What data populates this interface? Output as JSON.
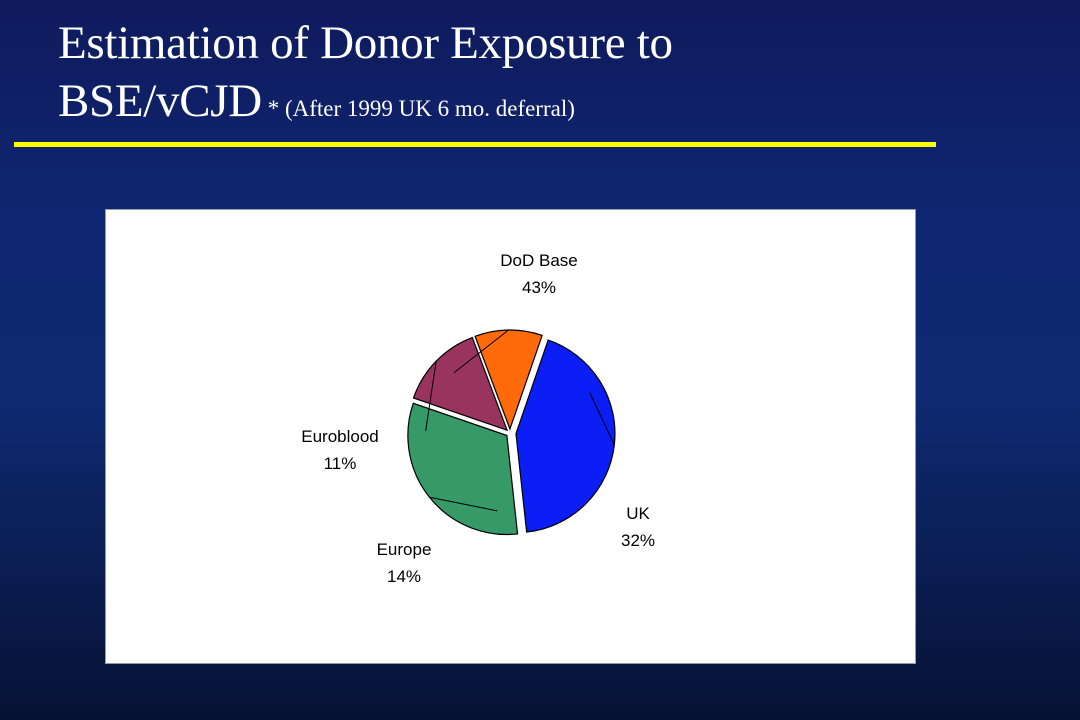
{
  "slide": {
    "title_line1": "Estimation of Donor Exposure to",
    "title_line2": "BSE/vCJD",
    "subtitle": " * (After  1999 UK 6 mo. deferral)"
  },
  "colors": {
    "background": "#0f2672",
    "rule": "#ffff00",
    "text": "#ffffff"
  },
  "chart_data": {
    "type": "pie",
    "title": "",
    "start_angle_deg": -71,
    "slices": [
      {
        "name": "DoD Base",
        "value": 43,
        "label": "43%",
        "color": "#0a1ef5"
      },
      {
        "name": "UK",
        "value": 32,
        "label": "32%",
        "color": "#369a68"
      },
      {
        "name": "Europe",
        "value": 14,
        "label": "14%",
        "color": "#98345e"
      },
      {
        "name": "Euroblood",
        "value": 11,
        "label": "11%",
        "color": "#ff6a0a"
      }
    ],
    "legend": "none",
    "exploded": true
  }
}
